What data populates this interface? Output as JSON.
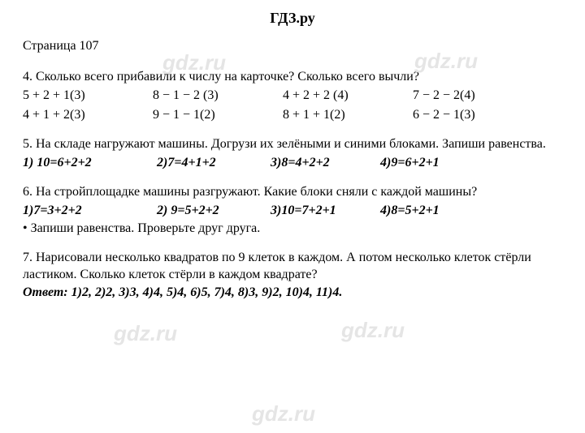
{
  "brand": "ГДЗ.ру",
  "page_label": "Страница 107",
  "watermarks": {
    "text": "gdz.ru"
  },
  "p4": {
    "num": "4.",
    "text": "Сколько всего прибавили к числу на карточке?  Сколько всего вычли?",
    "rows": [
      [
        "5 + 2 + 1(3)",
        "8 − 1 − 2 (3)",
        "4 + 2 + 2 (4)",
        "7 − 2 − 2(4)"
      ],
      [
        "4 + 1 + 2(3)",
        "9 − 1 − 1(2)",
        "8 + 1 + 1(2)",
        "6 − 2 − 1(3)"
      ]
    ]
  },
  "p5": {
    "num": "5.",
    "text": "На складе нагружают машины. Догрузи их зелёными и синими блоками. Запиши равенства.",
    "answers": [
      "1) 10=6+2+2",
      "2)7=4+1+2",
      "3)8=4+2+2",
      "4)9=6+2+1"
    ]
  },
  "p6": {
    "num": "6.",
    "text": "На стройплощадке машины разгружают. Какие блоки сняли с каждой машины?",
    "answers": [
      "1)7=3+2+2",
      "2) 9=5+2+2",
      "3)10=7+2+1",
      "4)8=5+2+1"
    ],
    "note": "• Запиши равенства. Проверьте друг друга."
  },
  "p7": {
    "num": "7.",
    "text": "Нарисовали несколько квадратов по 9 клеток в каждом. А потом несколько клеток стёрли ластиком. Сколько клеток стёрли в каждом квадрате?",
    "answer_label": "Ответ:",
    "answer_values": "1)2,   2)2,   3)3,   4)4,   5)4,   6)5,   7)4,   8)3,   9)2,   10)4,   11)4."
  }
}
